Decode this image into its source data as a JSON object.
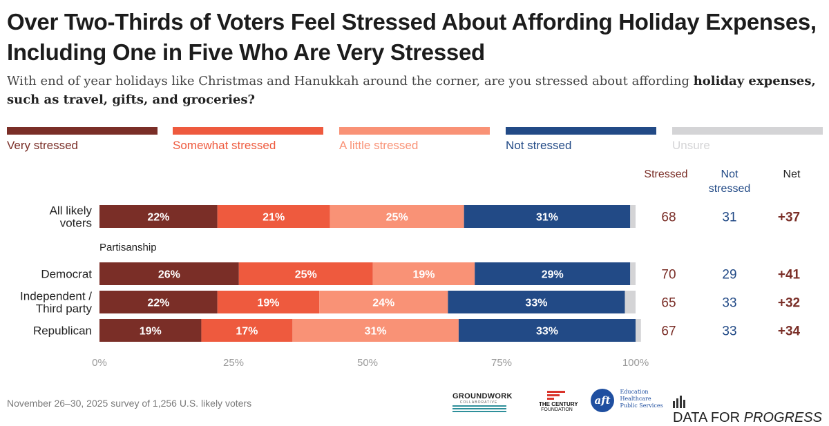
{
  "title": "Over Two-Thirds of Voters Feel Stressed About Affording Holiday Expenses, Including One in Five Who Are Very Stressed",
  "subtitle_plain": "With end of year holidays like Christmas and Hanukkah around the corner, are you stressed about affording ",
  "subtitle_bold": "holiday expenses, such as travel, gifts, and groceries?",
  "colors": {
    "very": "#7a2e27",
    "somewhat": "#ee5a3e",
    "little": "#f99276",
    "not": "#224a86",
    "unsure": "#d4d4d6",
    "stressed_text": "#7a2e27",
    "not_text": "#224a86"
  },
  "legend": [
    {
      "label": "Very stressed",
      "color": "#7a2e27"
    },
    {
      "label": "Somewhat stressed",
      "color": "#ee5a3e"
    },
    {
      "label": "A little stressed",
      "color": "#f99276"
    },
    {
      "label": "Not stressed",
      "color": "#224a86"
    },
    {
      "label": "Unsure",
      "color": "#d4d4d6"
    }
  ],
  "summary_headers": {
    "stressed": "Stressed",
    "not_stressed_line1": "Not",
    "not_stressed_line2": "stressed",
    "net": "Net"
  },
  "section_label": "Partisanship",
  "chart_data": {
    "type": "bar",
    "orientation": "horizontal",
    "stacked": true,
    "categories": [
      [
        "All likely",
        "voters"
      ],
      [
        "Democrat"
      ],
      [
        "Independent /",
        "Third party"
      ],
      [
        "Republican"
      ]
    ],
    "series": [
      {
        "name": "Very stressed",
        "values": [
          22,
          26,
          22,
          19
        ]
      },
      {
        "name": "Somewhat stressed",
        "values": [
          21,
          25,
          19,
          17
        ]
      },
      {
        "name": "A little stressed",
        "values": [
          25,
          19,
          24,
          31
        ]
      },
      {
        "name": "Not stressed",
        "values": [
          31,
          29,
          33,
          33
        ]
      },
      {
        "name": "Unsure",
        "values": [
          1,
          1,
          2,
          1
        ]
      }
    ],
    "value_labels": [
      [
        "22%",
        "21%",
        "25%",
        "31%"
      ],
      [
        "26%",
        "25%",
        "19%",
        "29%"
      ],
      [
        "22%",
        "19%",
        "24%",
        "33%"
      ],
      [
        "19%",
        "17%",
        "31%",
        "33%"
      ]
    ],
    "summary": {
      "stressed": [
        "68",
        "70",
        "65",
        "67"
      ],
      "not_stressed": [
        "31",
        "29",
        "33",
        "33"
      ],
      "net": [
        "+37",
        "+41",
        "+32",
        "+34"
      ]
    },
    "xlim": [
      0,
      100
    ],
    "x_ticks": [
      "0%",
      "25%",
      "50%",
      "75%",
      "100%"
    ],
    "x_tick_values": [
      0,
      25,
      50,
      75,
      100
    ]
  },
  "footer": {
    "source": "November 26–30, 2025 survey of 1,256 U.S. likely voters",
    "logo1_line1": "GROUNDWORK",
    "logo1_line2": "COLLABORATIVE",
    "logo2_line1": "THE CENTURY",
    "logo2_line2": "FOUNDATION",
    "logo3_mark": "aft",
    "logo3_line1": "Education",
    "logo3_line2": "Healthcare",
    "logo3_line3": "Public Services",
    "logo4_text1": "DATA FOR ",
    "logo4_text2": "PROGRESS"
  }
}
